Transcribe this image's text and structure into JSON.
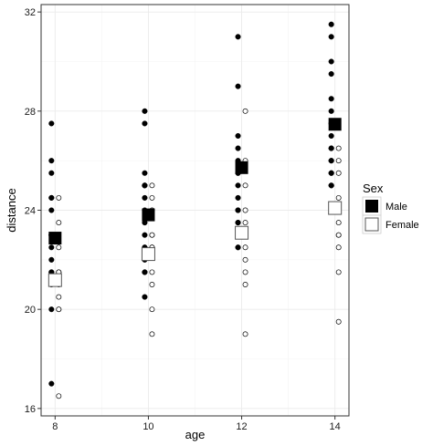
{
  "chart_data": {
    "type": "scatter",
    "xlabel": "age",
    "ylabel": "distance",
    "x_ticks": [
      8,
      10,
      12,
      14
    ],
    "y_ticks": [
      16,
      20,
      24,
      28,
      32
    ],
    "xlim": [
      7.7,
      14.3
    ],
    "ylim": [
      15.7,
      32.3
    ],
    "grid": true,
    "legend": {
      "title": "Sex",
      "placement": "right",
      "entries": [
        "Male",
        "Female"
      ]
    },
    "colors": {
      "male": "#000000",
      "female": "#ffffff",
      "outline": "#000000",
      "grid": "#ebebeb",
      "panel_border": "#333333"
    },
    "series": [
      {
        "name": "Male",
        "marker": "filled-circle",
        "x": [
          8,
          8,
          8,
          8,
          8,
          8,
          8,
          8,
          8,
          8,
          8,
          8,
          8,
          8,
          8,
          8,
          10,
          10,
          10,
          10,
          10,
          10,
          10,
          10,
          10,
          10,
          10,
          10,
          10,
          10,
          10,
          10,
          12,
          12,
          12,
          12,
          12,
          12,
          12,
          12,
          12,
          12,
          12,
          12,
          12,
          12,
          12,
          12,
          14,
          14,
          14,
          14,
          14,
          14,
          14,
          14,
          14,
          14,
          14,
          14,
          14,
          14,
          14,
          14
        ],
        "y": [
          27.5,
          26,
          25.5,
          24.5,
          24.5,
          24,
          23,
          23,
          23,
          22.5,
          22,
          21.5,
          21.5,
          21,
          20,
          17,
          28,
          27.5,
          25.5,
          25,
          25,
          24.5,
          24,
          23.5,
          23,
          22.5,
          22.5,
          22,
          21.5,
          21.5,
          20.5,
          25,
          31,
          29,
          27,
          26.5,
          26,
          25.5,
          25,
          24.5,
          24,
          24,
          23.5,
          23.5,
          23,
          22.5,
          22.5,
          25.5,
          31.5,
          31,
          30,
          29.5,
          28.5,
          28,
          27.5,
          27,
          26.5,
          26,
          26,
          25.5,
          25.5,
          25,
          25,
          26.5
        ]
      },
      {
        "name": "Female",
        "marker": "open-circle",
        "x": [
          8,
          8,
          8,
          8,
          8,
          8,
          8,
          8,
          8,
          8,
          8,
          10,
          10,
          10,
          10,
          10,
          10,
          10,
          10,
          10,
          10,
          10,
          12,
          12,
          12,
          12,
          12,
          12,
          12,
          12,
          12,
          12,
          12,
          14,
          14,
          14,
          14,
          14,
          14,
          14,
          14,
          14,
          14,
          14
        ],
        "y": [
          24.5,
          23.5,
          22.5,
          21.5,
          21.5,
          21.5,
          21,
          20.5,
          20,
          20,
          16.5,
          25,
          24.5,
          24,
          23,
          22.5,
          22.5,
          21.5,
          21,
          20,
          19,
          23,
          28,
          26,
          25,
          24,
          23.5,
          23,
          22.5,
          22,
          21.5,
          21,
          19,
          26.5,
          26,
          25.5,
          24.5,
          24,
          23.5,
          23,
          23,
          22.5,
          21.5,
          19.5
        ]
      },
      {
        "name": "Male mean",
        "marker": "filled-square",
        "x": [
          8,
          10,
          12,
          14
        ],
        "y": [
          22.875,
          23.8125,
          25.71875,
          27.46875
        ]
      },
      {
        "name": "Female mean",
        "marker": "open-square",
        "x": [
          8,
          10,
          12,
          14
        ],
        "y": [
          21.18,
          22.23,
          23.09,
          24.09
        ]
      }
    ]
  }
}
